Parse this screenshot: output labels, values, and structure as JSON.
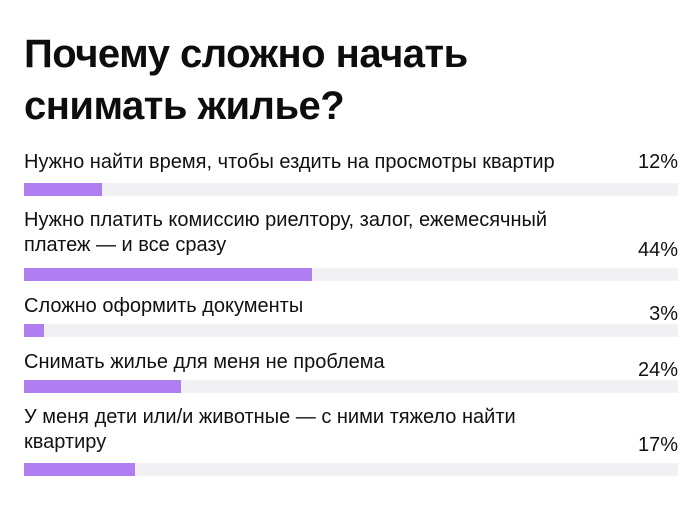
{
  "title": "Почему сложно начать снимать жилье?",
  "colors": {
    "bar": "#b07ef0",
    "track": "#f1f1f3",
    "text": "#111111"
  },
  "chart_data": {
    "type": "bar",
    "orientation": "horizontal",
    "title": "Почему сложно начать снимать жилье?",
    "categories": [
      "Нужно найти время, чтобы ездить на просмотры квартир",
      "Нужно платить комиссию риелтору, залог, ежемесячный платеж — и все сразу",
      "Сложно оформить документы",
      "Снимать жилье для меня не проблема",
      "У меня дети или/и животные — с ними тяжело найти квартиру"
    ],
    "values": [
      12,
      44,
      3,
      24,
      17
    ],
    "value_labels": [
      "12%",
      "44%",
      "3%",
      "24%",
      "17%"
    ],
    "xlim": [
      0,
      100
    ],
    "unit": "%",
    "grid": false,
    "legend": "none"
  }
}
